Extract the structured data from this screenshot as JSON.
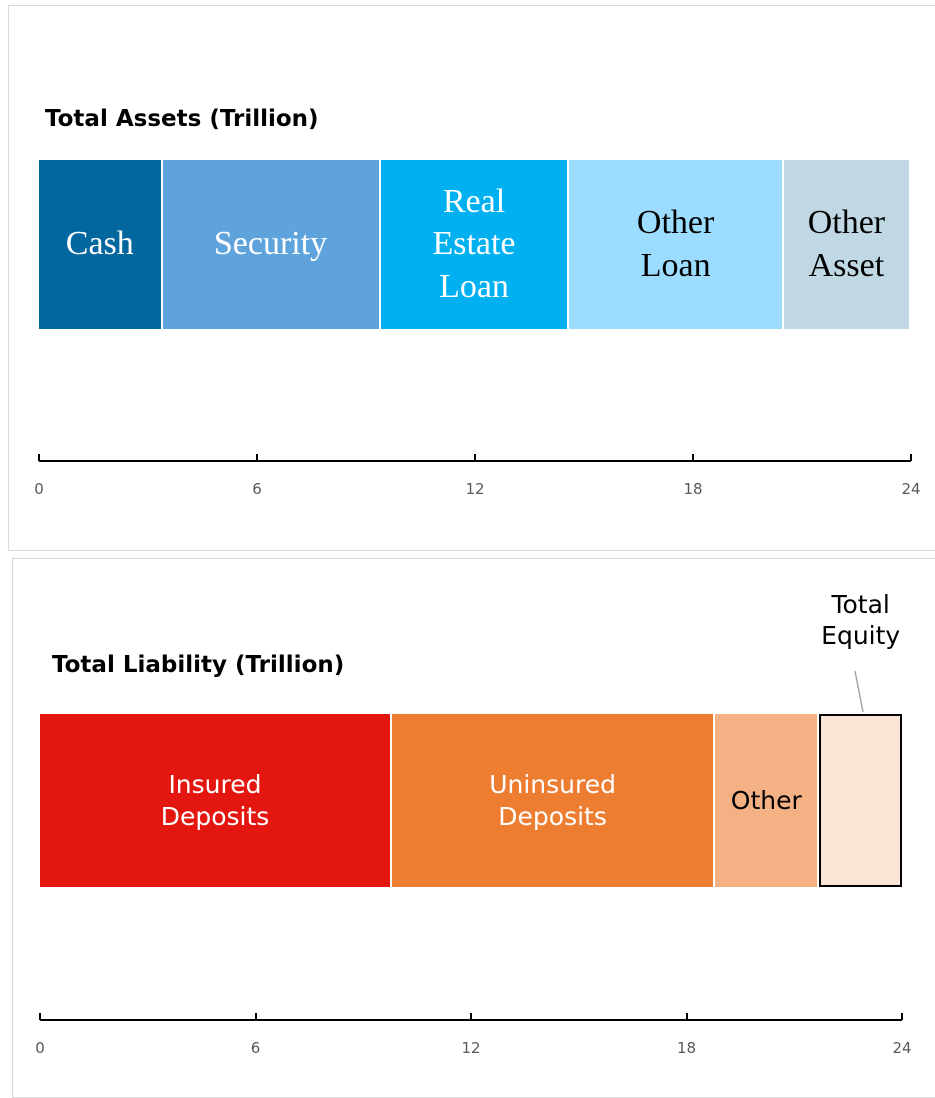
{
  "chart_data": [
    {
      "type": "stacked-bar",
      "title": "Total Assets (Trillion)",
      "series": [
        {
          "name": "Cash",
          "color": "#02679e",
          "values": [
            3.4
          ]
        },
        {
          "name": "Security",
          "color": "#5fa3dc",
          "values": [
            6.0
          ]
        },
        {
          "name": "Real\nEstate\nLoan",
          "color": "#00b0f0",
          "values": [
            5.2
          ]
        },
        {
          "name": "Other\nLoan",
          "color": "#9cdcfe",
          "values": [
            5.9
          ]
        },
        {
          "name": "Other\nAsset",
          "color": "#c0d8e4",
          "values": [
            3.5
          ]
        }
      ],
      "xlim": [
        0,
        24
      ],
      "xticks": [
        0,
        6,
        12,
        18,
        24
      ]
    },
    {
      "type": "stacked-bar",
      "title": "Total Liability (Trillion)",
      "series": [
        {
          "name": "Insured\nDeposits",
          "color": "#e3170f",
          "values": [
            9.8
          ]
        },
        {
          "name": "Uninsured\nDeposits",
          "color": "#ed7d31",
          "values": [
            9.0
          ]
        },
        {
          "name": "Other",
          "color": "#f4b183",
          "values": [
            2.9
          ]
        },
        {
          "name": "Total\nEquity",
          "color": "#fbe5d6",
          "edgecolor": "#000000",
          "values": [
            2.3
          ]
        }
      ],
      "xlim": [
        0,
        24
      ],
      "xticks": [
        0,
        6,
        12,
        18,
        24
      ]
    }
  ]
}
